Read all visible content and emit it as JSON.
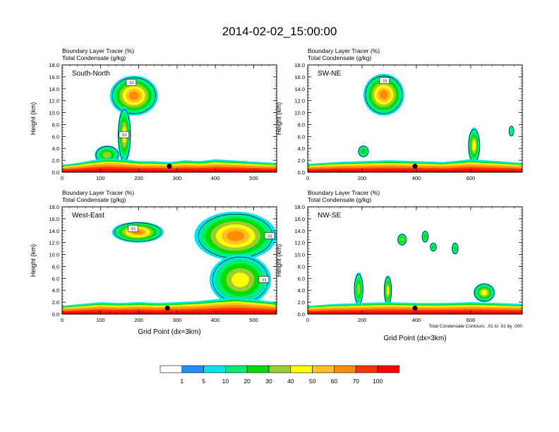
{
  "title": "2014-02-02_15:00:00",
  "chart_data": [
    {
      "type": "heatmap",
      "panel_label": "South-North",
      "variable_labels": [
        "Boundary Layer Tracer   (%)",
        "Total Condensate   (g/kg)"
      ],
      "xlabel": "",
      "ylabel": "Height (km)",
      "xlim": [
        0,
        560
      ],
      "ylim": [
        0,
        18
      ],
      "x_ticks": [
        "0",
        "100",
        "200",
        "300",
        "400",
        "500"
      ],
      "y_ticks": [
        "0.0",
        "2.0",
        "4.0",
        "6.0",
        "8.0",
        "10.0",
        "12.0",
        "14.0",
        "16.0",
        "18.0"
      ],
      "contour_labels": [
        ".01",
        ".01"
      ],
      "marker": [
        280,
        1.0
      ],
      "bl_layer": [
        [
          0,
          0.8
        ],
        [
          40,
          1.0
        ],
        [
          80,
          1.3
        ],
        [
          120,
          1.5
        ],
        [
          160,
          1.4
        ],
        [
          200,
          1.2
        ],
        [
          240,
          1.2
        ],
        [
          280,
          1.1
        ],
        [
          320,
          1.3
        ],
        [
          360,
          1.2
        ],
        [
          400,
          1.4
        ],
        [
          440,
          1.3
        ],
        [
          480,
          1.2
        ],
        [
          520,
          1.1
        ],
        [
          560,
          1.0
        ]
      ],
      "cloud_regions": [
        {
          "x": [
            125,
            250
          ],
          "y": [
            9.5,
            16.2
          ],
          "peak": 65
        },
        {
          "x": [
            145,
            180
          ],
          "y": [
            1.5,
            11.0
          ],
          "peak": 45
        },
        {
          "x": [
            85,
            150
          ],
          "y": [
            1.3,
            4.5
          ],
          "peak": 30
        }
      ]
    },
    {
      "type": "heatmap",
      "panel_label": "SW-NE",
      "variable_labels": [
        "Boundary Layer Tracer   (%)",
        "Total Condensate   (g/kg)"
      ],
      "xlabel": "",
      "ylabel": "Height (km)",
      "xlim": [
        0,
        790
      ],
      "ylim": [
        0,
        18
      ],
      "x_ticks": [
        "0",
        "200",
        "400",
        "600"
      ],
      "y_ticks": [
        "0.0",
        "2.0",
        "4.0",
        "6.0",
        "8.0",
        "10.0",
        "12.0",
        "14.0",
        "16.0",
        "18.0"
      ],
      "contour_labels": [
        ".01"
      ],
      "marker": [
        395,
        1.0
      ],
      "bl_layer": [
        [
          0,
          0.9
        ],
        [
          100,
          1.1
        ],
        [
          200,
          1.2
        ],
        [
          300,
          1.3
        ],
        [
          400,
          1.2
        ],
        [
          500,
          1.1
        ],
        [
          600,
          1.4
        ],
        [
          700,
          1.2
        ],
        [
          790,
          1.0
        ]
      ],
      "cloud_regions": [
        {
          "x": [
            205,
            355
          ],
          "y": [
            9.5,
            16.5
          ],
          "peak": 60
        },
        {
          "x": [
            590,
            635
          ],
          "y": [
            1.4,
            7.5
          ],
          "peak": 45
        },
        {
          "x": [
            185,
            225
          ],
          "y": [
            2.5,
            4.5
          ],
          "peak": 20
        },
        {
          "x": [
            740,
            760
          ],
          "y": [
            6.0,
            7.8
          ],
          "peak": 15
        }
      ]
    },
    {
      "type": "heatmap",
      "panel_label": "West-East",
      "variable_labels": [
        "Boundary Layer Tracer   (%)",
        "Total Condensate   (g/kg)"
      ],
      "xlabel": "Grid Point (dx=3km)",
      "ylabel": "Height (km)",
      "xlim": [
        0,
        560
      ],
      "ylim": [
        0,
        18
      ],
      "x_ticks": [
        "0",
        "100",
        "200",
        "300",
        "400",
        "500"
      ],
      "y_ticks": [
        "0.0",
        "2.0",
        "4.0",
        "6.0",
        "8.0",
        "10.0",
        "12.0",
        "14.0",
        "16.0",
        "18.0"
      ],
      "contour_labels": [
        ".01",
        ".01",
        ".01"
      ],
      "marker": [
        275,
        1.0
      ],
      "bl_layer": [
        [
          0,
          0.9
        ],
        [
          50,
          1.1
        ],
        [
          100,
          1.3
        ],
        [
          150,
          1.2
        ],
        [
          200,
          1.3
        ],
        [
          250,
          1.2
        ],
        [
          300,
          1.3
        ],
        [
          350,
          1.4
        ],
        [
          400,
          1.6
        ],
        [
          450,
          1.8
        ],
        [
          500,
          1.6
        ],
        [
          560,
          1.3
        ]
      ],
      "cloud_regions": [
        {
          "x": [
            130,
            265
          ],
          "y": [
            12.0,
            15.5
          ],
          "peak": 60
        },
        {
          "x": [
            345,
            560
          ],
          "y": [
            9.0,
            17.2
          ],
          "peak": 60
        },
        {
          "x": [
            385,
            545
          ],
          "y": [
            1.5,
            10.0
          ],
          "peak": 40
        }
      ]
    },
    {
      "type": "heatmap",
      "panel_label": "NW-SE",
      "variable_labels": [
        "Boundary Layer Tracer   (%)",
        "Total Condensate   (g/kg)"
      ],
      "xlabel": "Grid Point (dx=3km)",
      "ylabel": "Height (km)",
      "xlim": [
        0,
        790
      ],
      "ylim": [
        0,
        18
      ],
      "x_ticks": [
        "0",
        "200",
        "400",
        "600"
      ],
      "y_ticks": [
        "0.0",
        "2.0",
        "4.0",
        "6.0",
        "8.0",
        "10.0",
        "12.0",
        "14.0",
        "16.0",
        "18.0"
      ],
      "contour_labels": [],
      "marker": [
        395,
        1.0
      ],
      "bl_layer": [
        [
          0,
          0.9
        ],
        [
          100,
          1.1
        ],
        [
          200,
          1.2
        ],
        [
          300,
          1.3
        ],
        [
          400,
          1.2
        ],
        [
          500,
          1.2
        ],
        [
          600,
          1.3
        ],
        [
          700,
          1.2
        ],
        [
          790,
          1.1
        ]
      ],
      "footnote": "Total Condensate Contours: .01 to .01 by .000",
      "cloud_regions": [
        {
          "x": [
            170,
            205
          ],
          "y": [
            1.4,
            7.0
          ],
          "peak": 30
        },
        {
          "x": [
            280,
            310
          ],
          "y": [
            1.4,
            6.5
          ],
          "peak": 40
        },
        {
          "x": [
            330,
            365
          ],
          "y": [
            11.5,
            13.5
          ],
          "peak": 30
        },
        {
          "x": [
            420,
            445
          ],
          "y": [
            12.0,
            14.0
          ],
          "peak": 20
        },
        {
          "x": [
            450,
            475
          ],
          "y": [
            10.5,
            12.0
          ],
          "peak": 20
        },
        {
          "x": [
            530,
            555
          ],
          "y": [
            10.0,
            12.0
          ],
          "peak": 20
        },
        {
          "x": [
            610,
            690
          ],
          "y": [
            2.0,
            5.2
          ],
          "peak": 40
        }
      ]
    }
  ],
  "colorbar": {
    "labels": [
      "1",
      "5",
      "10",
      "20",
      "30",
      "40",
      "50",
      "60",
      "70",
      "100"
    ],
    "colors": [
      "#ffffff",
      "#1e90ff",
      "#00e5ee",
      "#00ee76",
      "#00dd00",
      "#9acd32",
      "#ffff00",
      "#ffc125",
      "#ff8c00",
      "#ff3300",
      "#ff0000"
    ]
  }
}
